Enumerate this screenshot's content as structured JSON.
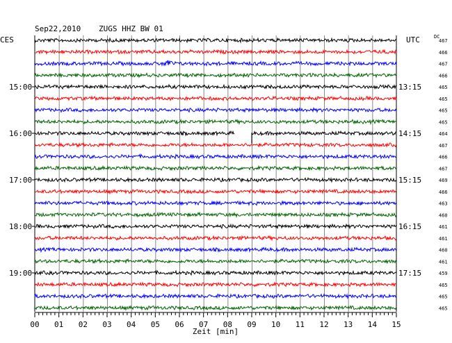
{
  "header": {
    "date": "Sep22,2010",
    "station": "ZUGS HHZ BW 01",
    "left_label": "CES",
    "right_label": "UTC",
    "dc_label": "DC"
  },
  "chart_data": {
    "type": "line",
    "title": "Sep22,2010   ZUGS HHZ BW 01",
    "xlabel": "Zeit [min]",
    "xlim": [
      0,
      15
    ],
    "x_ticks": [
      "00",
      "01",
      "02",
      "03",
      "04",
      "05",
      "06",
      "07",
      "08",
      "09",
      "10",
      "11",
      "12",
      "13",
      "14",
      "15"
    ],
    "trace_colors": [
      "#000000",
      "#ff0000",
      "#0000ff",
      "#006400"
    ],
    "left_time_labels": [
      {
        "trace": 4,
        "label": "15:00"
      },
      {
        "trace": 8,
        "label": "16:00"
      },
      {
        "trace": 12,
        "label": "17:00"
      },
      {
        "trace": 16,
        "label": "18:00"
      },
      {
        "trace": 20,
        "label": "19:00"
      }
    ],
    "right_time_labels": [
      {
        "trace": 4,
        "label": "13:15"
      },
      {
        "trace": 8,
        "label": "14:15"
      },
      {
        "trace": 12,
        "label": "15:15"
      },
      {
        "trace": 16,
        "label": "16:15"
      },
      {
        "trace": 20,
        "label": "17:15"
      }
    ],
    "dc_values": [
      "467",
      "466",
      "467",
      "466",
      "465",
      "465",
      "465",
      "465",
      "464",
      "467",
      "466",
      "467",
      "469",
      "466",
      "463",
      "460",
      "461",
      "461",
      "460",
      "461",
      "459",
      "465",
      "465",
      "465"
    ],
    "gap": {
      "trace": 8,
      "from_min": 8.3,
      "to_min": 9.0
    },
    "events": [
      {
        "trace": 2,
        "at_min": 5.5
      }
    ]
  }
}
